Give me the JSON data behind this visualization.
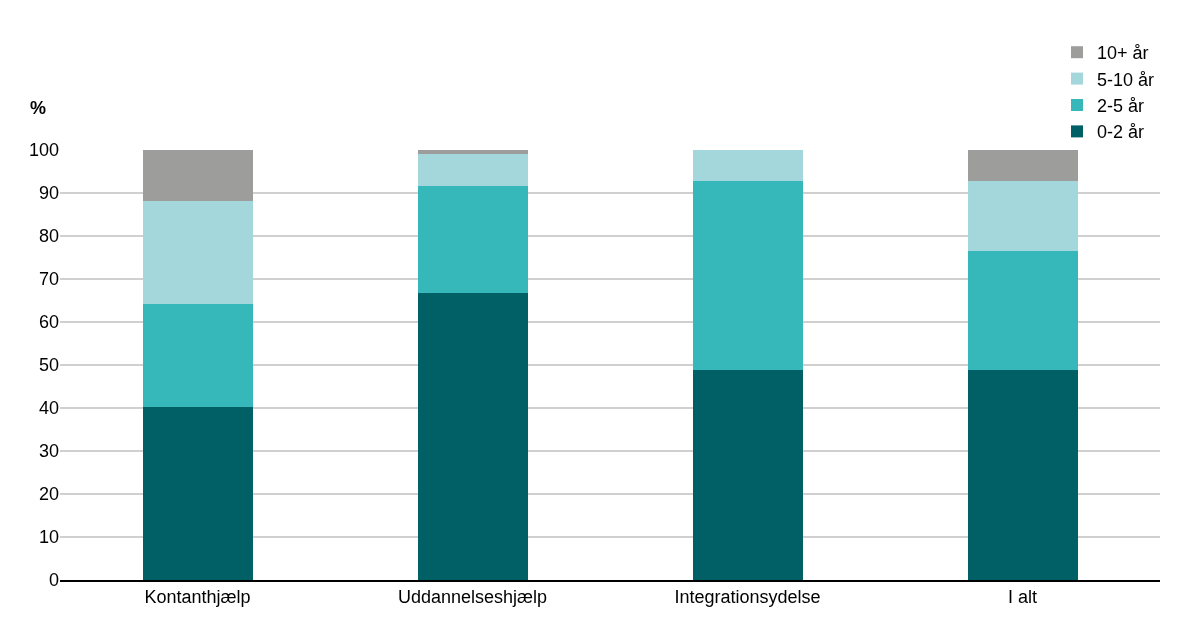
{
  "chart_data": {
    "type": "bar",
    "stacked": true,
    "ylabel": "%",
    "categories": [
      "Kontanthjælp",
      "Uddannelseshjælp",
      "Integrationsydelse",
      "I alt"
    ],
    "series": [
      {
        "name": "0-2 år",
        "color": "#006066",
        "values": [
          40.2,
          66.7,
          48.9,
          48.9
        ]
      },
      {
        "name": "2-5 år",
        "color": "#36b8bb",
        "values": [
          24.1,
          25.0,
          44.0,
          27.5
        ]
      },
      {
        "name": "5-10 år",
        "color": "#a3d7db",
        "values": [
          23.9,
          7.4,
          7.1,
          16.5
        ]
      },
      {
        "name": "10+ år",
        "color": "#9d9d9c",
        "values": [
          11.8,
          0.9,
          0,
          7.1
        ]
      }
    ],
    "ylim": [
      0,
      100
    ],
    "yticks": [
      0,
      10,
      20,
      30,
      40,
      50,
      60,
      70,
      80,
      90,
      100
    ],
    "grid": "y",
    "legend": "top right"
  }
}
